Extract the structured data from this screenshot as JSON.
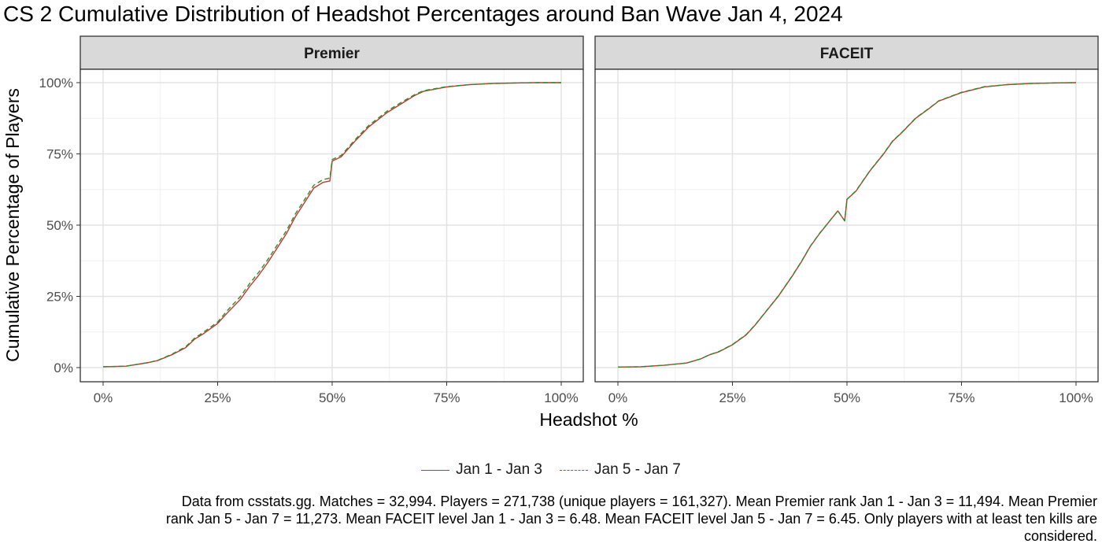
{
  "title": "CS 2 Cumulative Distribution of Headshot Percentages around Ban Wave Jan 4, 2024",
  "xlabel": "Headshot %",
  "ylabel": "Cumulative Percentage of Players",
  "legend": {
    "items": [
      {
        "label": "Jan 1 - Jan 3",
        "color": "#c0392b",
        "style": "solid"
      },
      {
        "label": "Jan 5 - Jan 7",
        "color": "#2e8b2e",
        "style": "dashed"
      }
    ]
  },
  "caption": "Data from csstats.gg. Matches = 32,994. Players = 271,738 (unique players = 161,327). Mean Premier rank Jan 1 - Jan 3 = 11,494. Mean Premier rank Jan 5 - Jan 7 = 11,273. Mean FACEIT level Jan 1 - Jan 3 = 6.48. Mean FACEIT level Jan 5 - Jan 7 = 6.45. Only players with at least ten kills are considered.",
  "chart_data": [
    {
      "type": "line",
      "panel": "Premier",
      "x_ticks": [
        "0%",
        "25%",
        "50%",
        "75%",
        "100%"
      ],
      "y_ticks": [
        "0%",
        "25%",
        "50%",
        "75%",
        "100%"
      ],
      "xlim": [
        0,
        100
      ],
      "ylim": [
        0,
        100
      ],
      "grid": true,
      "legend_position": "bottom",
      "series": [
        {
          "name": "Jan 1 - Jan 3",
          "color": "#c0392b",
          "dash": "none",
          "x": [
            0,
            5,
            10,
            12,
            15,
            18,
            20,
            22,
            25,
            27,
            30,
            32,
            34,
            36,
            38,
            40,
            42,
            44,
            46,
            48,
            49.5,
            50,
            52,
            55,
            58,
            60,
            62,
            65,
            68,
            70,
            75,
            80,
            85,
            90,
            95,
            100
          ],
          "y": [
            0.3,
            0.5,
            1.8,
            2.5,
            4.5,
            7.0,
            10.0,
            12.0,
            15.5,
            19.0,
            24.0,
            28.5,
            32.5,
            37.0,
            42.0,
            47.0,
            53.0,
            58.0,
            63.0,
            65.0,
            65.5,
            72.5,
            74.0,
            79.5,
            84.5,
            87.0,
            89.5,
            92.5,
            95.5,
            97.0,
            98.5,
            99.3,
            99.7,
            99.9,
            100,
            100
          ]
        },
        {
          "name": "Jan 5 - Jan 7",
          "color": "#2e8b2e",
          "dash": "6,4",
          "x": [
            0,
            5,
            10,
            12,
            15,
            18,
            20,
            22,
            25,
            27,
            30,
            32,
            34,
            36,
            38,
            40,
            42,
            44,
            46,
            48,
            49.5,
            50,
            52,
            55,
            58,
            60,
            62,
            65,
            68,
            70,
            75,
            80,
            85,
            90,
            95,
            100
          ],
          "y": [
            0.3,
            0.5,
            1.8,
            2.6,
            4.7,
            7.3,
            10.4,
            12.5,
            16.0,
            19.8,
            25.0,
            29.5,
            33.5,
            38.0,
            43.0,
            48.0,
            54.0,
            59.0,
            64.0,
            66.0,
            66.5,
            73.0,
            74.5,
            80.0,
            85.0,
            87.5,
            90.0,
            93.0,
            95.8,
            97.2,
            98.6,
            99.3,
            99.7,
            99.9,
            100,
            100
          ]
        }
      ]
    },
    {
      "type": "line",
      "panel": "FACEIT",
      "x_ticks": [
        "0%",
        "25%",
        "50%",
        "75%",
        "100%"
      ],
      "y_ticks": [
        "0%",
        "25%",
        "50%",
        "75%",
        "100%"
      ],
      "xlim": [
        0,
        100
      ],
      "ylim": [
        0,
        100
      ],
      "grid": true,
      "legend_position": "bottom",
      "series": [
        {
          "name": "Jan 1 - Jan 3",
          "color": "#c0392b",
          "dash": "none",
          "x": [
            0,
            5,
            10,
            15,
            18,
            20,
            22,
            25,
            28,
            30,
            32,
            35,
            38,
            40,
            42,
            44,
            46,
            48,
            49.5,
            50,
            52,
            55,
            58,
            60,
            62,
            65,
            68,
            70,
            75,
            80,
            85,
            90,
            95,
            100
          ],
          "y": [
            0.2,
            0.3,
            0.8,
            1.6,
            3.0,
            4.5,
            5.5,
            8.0,
            11.5,
            15.0,
            19.0,
            25.0,
            32.0,
            37.0,
            42.5,
            47.0,
            51.0,
            55.0,
            51.5,
            59.0,
            62.0,
            69.0,
            75.0,
            79.5,
            82.5,
            87.5,
            91.0,
            93.5,
            96.5,
            98.5,
            99.3,
            99.7,
            99.9,
            100
          ]
        },
        {
          "name": "Jan 5 - Jan 7",
          "color": "#2e8b2e",
          "dash": "6,4",
          "x": [
            0,
            5,
            10,
            15,
            18,
            20,
            22,
            25,
            28,
            30,
            32,
            35,
            38,
            40,
            42,
            44,
            46,
            48,
            49.5,
            50,
            52,
            55,
            58,
            60,
            62,
            65,
            68,
            70,
            75,
            80,
            85,
            90,
            95,
            100
          ],
          "y": [
            0.2,
            0.3,
            0.8,
            1.6,
            3.0,
            4.5,
            5.6,
            8.1,
            11.6,
            15.1,
            19.1,
            25.1,
            32.1,
            37.1,
            42.6,
            47.1,
            51.0,
            55.0,
            51.5,
            59.1,
            62.1,
            69.1,
            75.1,
            79.6,
            82.6,
            87.6,
            91.1,
            93.6,
            96.6,
            98.6,
            99.3,
            99.7,
            99.9,
            100
          ]
        }
      ]
    }
  ]
}
